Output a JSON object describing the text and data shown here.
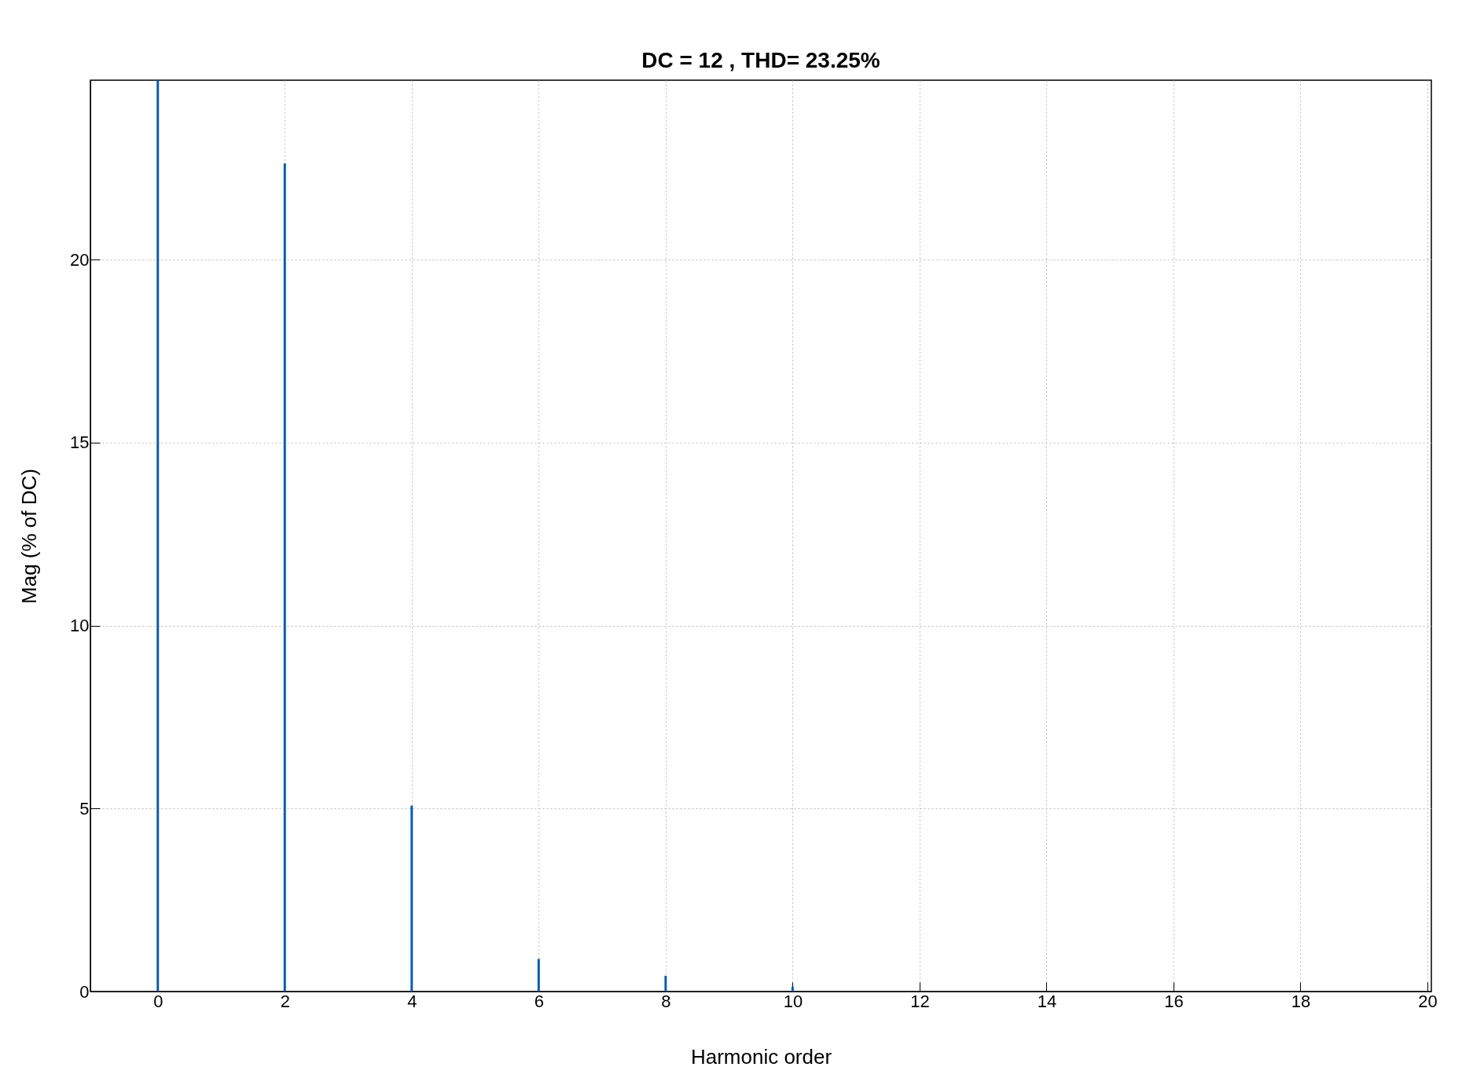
{
  "chart_data": {
    "type": "bar",
    "title": "DC = 12 , THD= 23.25%",
    "xlabel": "Harmonic order",
    "ylabel": "Mag (% of DC)",
    "x": [
      0,
      1,
      2,
      3,
      4,
      5,
      6,
      7,
      8,
      9,
      10,
      11,
      12,
      13,
      14,
      15,
      16,
      17,
      18,
      19,
      20
    ],
    "values": [
      24.9,
      0,
      22.63,
      0,
      5.08,
      0,
      0.89,
      0,
      0.43,
      0,
      0.13,
      0,
      0,
      0,
      0,
      0,
      0,
      0,
      0,
      0,
      0
    ],
    "color": "#0b5cad",
    "xlim": [
      -1,
      20
    ],
    "xticks": [
      0,
      2,
      4,
      6,
      8,
      10,
      12,
      14,
      16,
      18,
      20
    ],
    "ylim": [
      0,
      24.9
    ],
    "yticks": [
      0,
      5,
      10,
      15,
      20
    ],
    "grid": true
  }
}
